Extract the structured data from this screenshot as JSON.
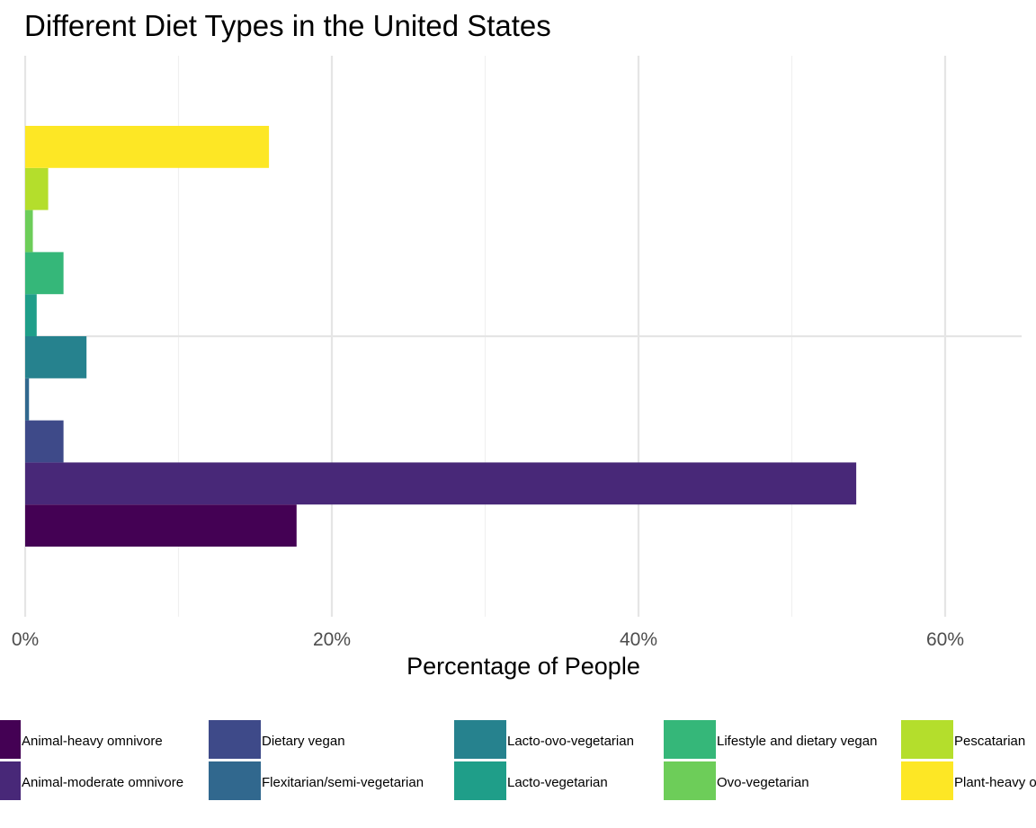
{
  "chart_data": {
    "type": "bar",
    "orientation": "horizontal",
    "title": "Different Diet Types in the United States",
    "xlabel": "Percentage of People",
    "ylabel": "",
    "xlim": [
      0,
      65
    ],
    "x_ticks": [
      {
        "value": 0,
        "label": "0%"
      },
      {
        "value": 20,
        "label": "20%"
      },
      {
        "value": 40,
        "label": "40%"
      },
      {
        "value": 60,
        "label": "60%"
      }
    ],
    "grid": true,
    "legend_position": "bottom",
    "categories": [
      "Animal-heavy omnivore",
      "Animal-moderate omnivore",
      "Dietary vegan",
      "Flexitarian/semi-vegetarian",
      "Lacto-ovo-vegetarian",
      "Lacto-vegetarian",
      "Lifestyle and dietary vegan",
      "Ovo-vegetarian",
      "Pescatarian",
      "Plant-heavy omnivore"
    ],
    "values": [
      17.7,
      54.2,
      2.5,
      0.25,
      4.0,
      0.75,
      2.5,
      0.5,
      1.5,
      15.9
    ],
    "colors": [
      "#440154",
      "#482878",
      "#3E4A89",
      "#31688E",
      "#26828E",
      "#1F9E89",
      "#35B779",
      "#6DCD59",
      "#B4DE2C",
      "#FDE725"
    ],
    "legend_columns": [
      [
        "Animal-heavy omnivore",
        "Animal-moderate omnivore"
      ],
      [
        "Dietary vegan",
        "Flexitarian/semi-vegetarian"
      ],
      [
        "Lacto-ovo-vegetarian",
        "Lacto-vegetarian"
      ],
      [
        "Lifestyle and dietary vegan",
        "Ovo-vegetarian"
      ],
      [
        "Pescatarian",
        "Plant-heavy omnivore"
      ]
    ]
  }
}
